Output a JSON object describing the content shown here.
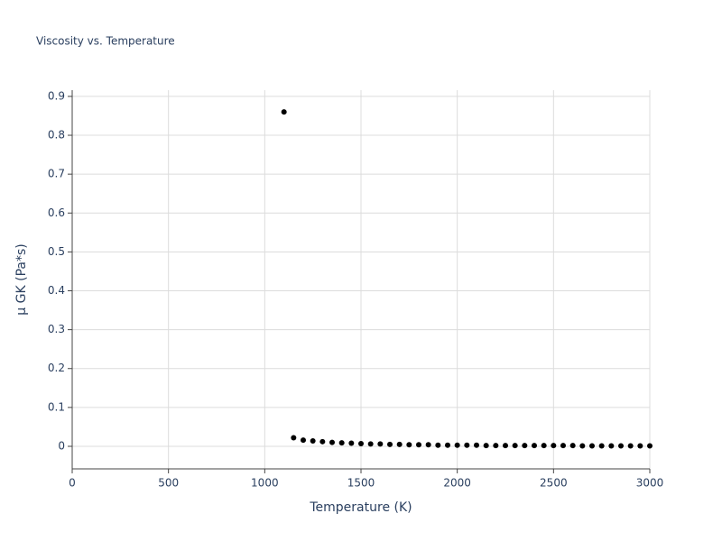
{
  "chart_data": {
    "type": "scatter",
    "title": "Viscosity vs. Temperature",
    "x_label": "Temperature (K)",
    "y_label": "μ GK (Pa*s)",
    "color": "#000000",
    "grid": true,
    "x": [
      1100,
      1150,
      1200,
      1250,
      1300,
      1350,
      1400,
      1450,
      1500,
      1550,
      1600,
      1650,
      1700,
      1750,
      1800,
      1850,
      1900,
      1950,
      2000,
      2050,
      2100,
      2150,
      2200,
      2250,
      2300,
      2350,
      2400,
      2450,
      2500,
      2550,
      2600,
      2650,
      2700,
      2750,
      2800,
      2850,
      2900,
      2950,
      3000
    ],
    "values": [
      0.86,
      0.022,
      0.016,
      0.014,
      0.012,
      0.01,
      0.009,
      0.008,
      0.007,
      0.006,
      0.006,
      0.005,
      0.005,
      0.004,
      0.004,
      0.004,
      0.003,
      0.003,
      0.003,
      0.003,
      0.003,
      0.002,
      0.002,
      0.002,
      0.002,
      0.002,
      0.002,
      0.002,
      0.002,
      0.002,
      0.002,
      0.001,
      0.001,
      0.001,
      0.001,
      0.001,
      0.001,
      0.001,
      0.001
    ],
    "xlim": [
      0,
      3000
    ],
    "xticks": [
      0,
      500,
      1000,
      1500,
      2000,
      2500,
      3000
    ],
    "ylim": [
      -0.058,
      0.916
    ],
    "yticks": [
      0,
      0.1,
      0.2,
      0.3,
      0.4,
      0.5,
      0.6,
      0.7,
      0.8,
      0.9
    ]
  }
}
